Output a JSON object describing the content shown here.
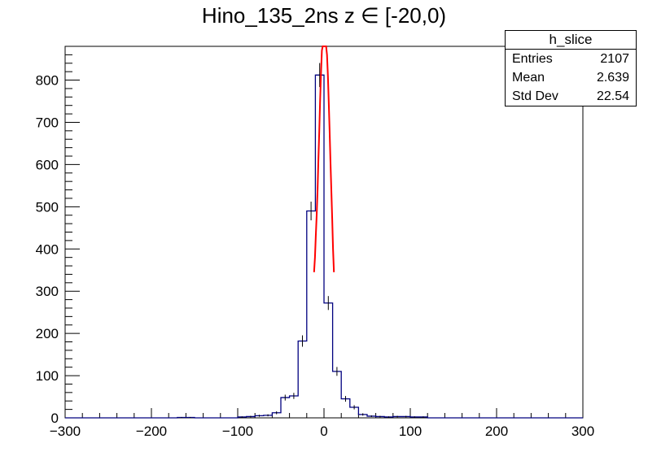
{
  "chart_data": {
    "type": "histogram",
    "title": "Hino_135_2ns z  ∈ [-20,0)",
    "xlim": [
      -300,
      300
    ],
    "ylim": [
      0,
      880
    ],
    "x_ticks": [
      -300,
      -200,
      -100,
      0,
      100,
      200,
      300
    ],
    "y_ticks": [
      0,
      100,
      200,
      300,
      400,
      500,
      600,
      700,
      800
    ],
    "bin_width": 10,
    "series": [
      {
        "color": "#00007f",
        "bins": [
          {
            "x": -170,
            "y": 1
          },
          {
            "x": -160,
            "y": 1
          },
          {
            "x": -100,
            "y": 2
          },
          {
            "x": -90,
            "y": 3
          },
          {
            "x": -80,
            "y": 5
          },
          {
            "x": -70,
            "y": 6
          },
          {
            "x": -60,
            "y": 12
          },
          {
            "x": -50,
            "y": 48
          },
          {
            "x": -40,
            "y": 52
          },
          {
            "x": -30,
            "y": 182
          },
          {
            "x": -20,
            "y": 490
          },
          {
            "x": -10,
            "y": 812
          },
          {
            "x": 0,
            "y": 272
          },
          {
            "x": 10,
            "y": 110
          },
          {
            "x": 20,
            "y": 45
          },
          {
            "x": 30,
            "y": 25
          },
          {
            "x": 40,
            "y": 8
          },
          {
            "x": 50,
            "y": 4
          },
          {
            "x": 60,
            "y": 3
          },
          {
            "x": 70,
            "y": 2
          },
          {
            "x": 80,
            "y": 3
          },
          {
            "x": 90,
            "y": 3
          },
          {
            "x": 100,
            "y": 2
          },
          {
            "x": 110,
            "y": 2
          }
        ]
      },
      {
        "type": "line",
        "color": "#ff0000",
        "points": [
          [
            -11.5,
            345
          ],
          [
            -10.5,
            380
          ],
          [
            -9.5,
            430
          ],
          [
            -8.5,
            480
          ],
          [
            -7.5,
            540
          ],
          [
            -6.5,
            610
          ],
          [
            -5.5,
            680
          ],
          [
            -4.5,
            750
          ],
          [
            -3.5,
            815
          ],
          [
            -2.5,
            870
          ],
          [
            -1.5,
            880
          ],
          [
            2.5,
            880
          ],
          [
            3.5,
            860
          ],
          [
            4.5,
            810
          ],
          [
            5.5,
            750
          ],
          [
            6.5,
            680
          ],
          [
            7.5,
            610
          ],
          [
            8.5,
            540
          ],
          [
            9.5,
            470
          ],
          [
            10.5,
            400
          ],
          [
            11.5,
            345
          ]
        ]
      }
    ]
  },
  "stats": {
    "title": "h_slice",
    "rows": [
      {
        "label": "Entries",
        "value": "2107"
      },
      {
        "label": "Mean",
        "value": "2.639"
      },
      {
        "label": "Std Dev",
        "value": "22.54"
      }
    ]
  }
}
